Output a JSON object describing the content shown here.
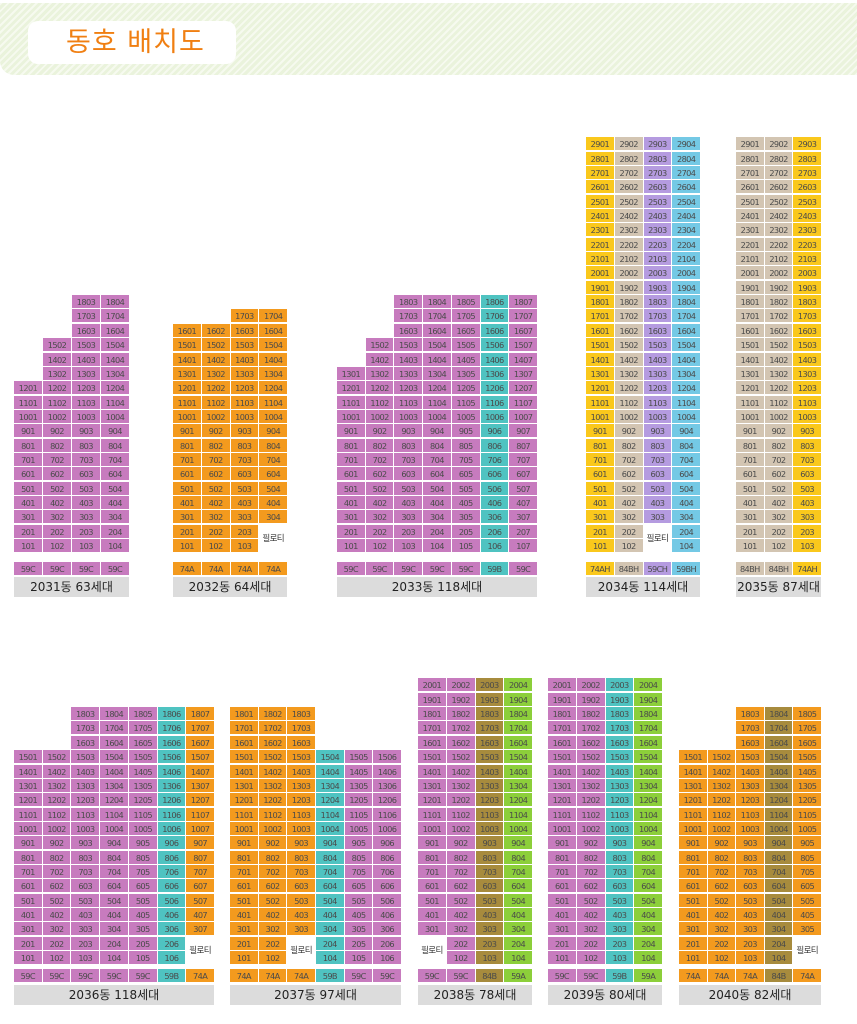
{
  "title": "동호 배치도",
  "palette": {
    "P": "#c77bbe",
    "T": "#4fc3c1",
    "O": "#f39a1e",
    "Y": "#fac81c",
    "V": "#b59be0",
    "C": "#74c9e5",
    "B": "#d3c5b2",
    "G": "#8ccf3a",
    "K": "#a78b3d"
  },
  "pilotis_text": "필로티",
  "buildings": [
    {
      "label": "2031동 63세대",
      "cols": [
        "01",
        "02",
        "03",
        "04"
      ],
      "colors": [
        "P",
        "P",
        "P",
        "P"
      ],
      "top_floor": [
        12,
        15,
        18,
        18
      ],
      "pilotis": [],
      "types": [
        "59C",
        "59C",
        "59C",
        "59C"
      ],
      "type_colors": [
        "P",
        "P",
        "P",
        "P"
      ]
    },
    {
      "label": "2032동 64세대",
      "cols": [
        "01",
        "02",
        "03",
        "04"
      ],
      "colors": [
        "O",
        "O",
        "O",
        "O"
      ],
      "top_floor": [
        16,
        16,
        17,
        17
      ],
      "pilotis": [
        "2.04",
        "1.04"
      ],
      "types": [
        "74A",
        "74A",
        "74A",
        "74A"
      ],
      "type_colors": [
        "O",
        "O",
        "O",
        "O"
      ]
    },
    {
      "label": "2033동 118세대",
      "cols": [
        "01",
        "02",
        "03",
        "04",
        "05",
        "06",
        "07"
      ],
      "colors": [
        "P",
        "P",
        "P",
        "P",
        "P",
        "T",
        "P"
      ],
      "top_floor": [
        13,
        15,
        18,
        18,
        18,
        18,
        18
      ],
      "pilotis": [],
      "types": [
        "59C",
        "59C",
        "59C",
        "59C",
        "59C",
        "59B",
        "59C"
      ],
      "type_colors": [
        "P",
        "P",
        "P",
        "P",
        "P",
        "T",
        "P"
      ]
    },
    {
      "label": "2034동 114세대",
      "cols": [
        "01",
        "02",
        "03",
        "04"
      ],
      "colors": [
        "Y",
        "B",
        "V",
        "C"
      ],
      "top_floor": [
        29,
        29,
        29,
        29
      ],
      "pilotis": [
        "2.03",
        "1.03"
      ],
      "types": [
        "74AH",
        "84BH",
        "59CH",
        "59BH"
      ],
      "type_colors": [
        "Y",
        "B",
        "V",
        "C"
      ]
    },
    {
      "label": "2035동 87세대",
      "cols": [
        "01",
        "02",
        "03"
      ],
      "colors": [
        "B",
        "B",
        "Y"
      ],
      "top_floor": [
        29,
        29,
        29
      ],
      "pilotis": [],
      "types": [
        "84BH",
        "84BH",
        "74AH"
      ],
      "type_colors": [
        "B",
        "B",
        "Y"
      ]
    },
    {
      "label": "2036동 118세대",
      "cols": [
        "01",
        "02",
        "03",
        "04",
        "05",
        "06",
        "07"
      ],
      "colors": [
        "P",
        "P",
        "P",
        "P",
        "P",
        "T",
        "O"
      ],
      "top_floor": [
        15,
        15,
        18,
        18,
        18,
        18,
        18
      ],
      "pilotis": [
        "2.07",
        "1.07"
      ],
      "types": [
        "59C",
        "59C",
        "59C",
        "59C",
        "59C",
        "59B",
        "74A"
      ],
      "type_colors": [
        "P",
        "P",
        "P",
        "P",
        "P",
        "T",
        "O"
      ]
    },
    {
      "label": "2037동 97세대",
      "cols": [
        "01",
        "02",
        "03",
        "04",
        "05",
        "06"
      ],
      "colors": [
        "O",
        "O",
        "O",
        "T",
        "P",
        "P"
      ],
      "top_floor": [
        18,
        18,
        18,
        15,
        15,
        15
      ],
      "pilotis": [
        "2.03",
        "1.03"
      ],
      "types": [
        "74A",
        "74A",
        "74A",
        "59B",
        "59C",
        "59C"
      ],
      "type_colors": [
        "O",
        "O",
        "O",
        "T",
        "P",
        "P"
      ]
    },
    {
      "label": "2038동 78세대",
      "cols": [
        "01",
        "02",
        "03",
        "04"
      ],
      "colors": [
        "P",
        "P",
        "K",
        "G"
      ],
      "top_floor": [
        20,
        20,
        20,
        20
      ],
      "pilotis": [
        "2.01",
        "1.01"
      ],
      "types": [
        "59C",
        "59C",
        "84B",
        "59A"
      ],
      "type_colors": [
        "P",
        "P",
        "K",
        "G"
      ]
    },
    {
      "label": "2039동 80세대",
      "cols": [
        "01",
        "02",
        "03",
        "04"
      ],
      "colors": [
        "P",
        "P",
        "T",
        "G"
      ],
      "top_floor": [
        20,
        20,
        20,
        20
      ],
      "pilotis": [],
      "types": [
        "59C",
        "59C",
        "59B",
        "59A"
      ],
      "type_colors": [
        "P",
        "P",
        "T",
        "G"
      ]
    },
    {
      "label": "2040동 82세대",
      "cols": [
        "01",
        "02",
        "03",
        "04",
        "05"
      ],
      "colors": [
        "O",
        "O",
        "O",
        "K",
        "O"
      ],
      "top_floor": [
        15,
        15,
        18,
        18,
        18
      ],
      "pilotis": [
        "2.05",
        "1.05"
      ],
      "types": [
        "74A",
        "74A",
        "74A",
        "84B",
        "74A"
      ],
      "type_colors": [
        "O",
        "O",
        "O",
        "K",
        "O"
      ]
    }
  ]
}
